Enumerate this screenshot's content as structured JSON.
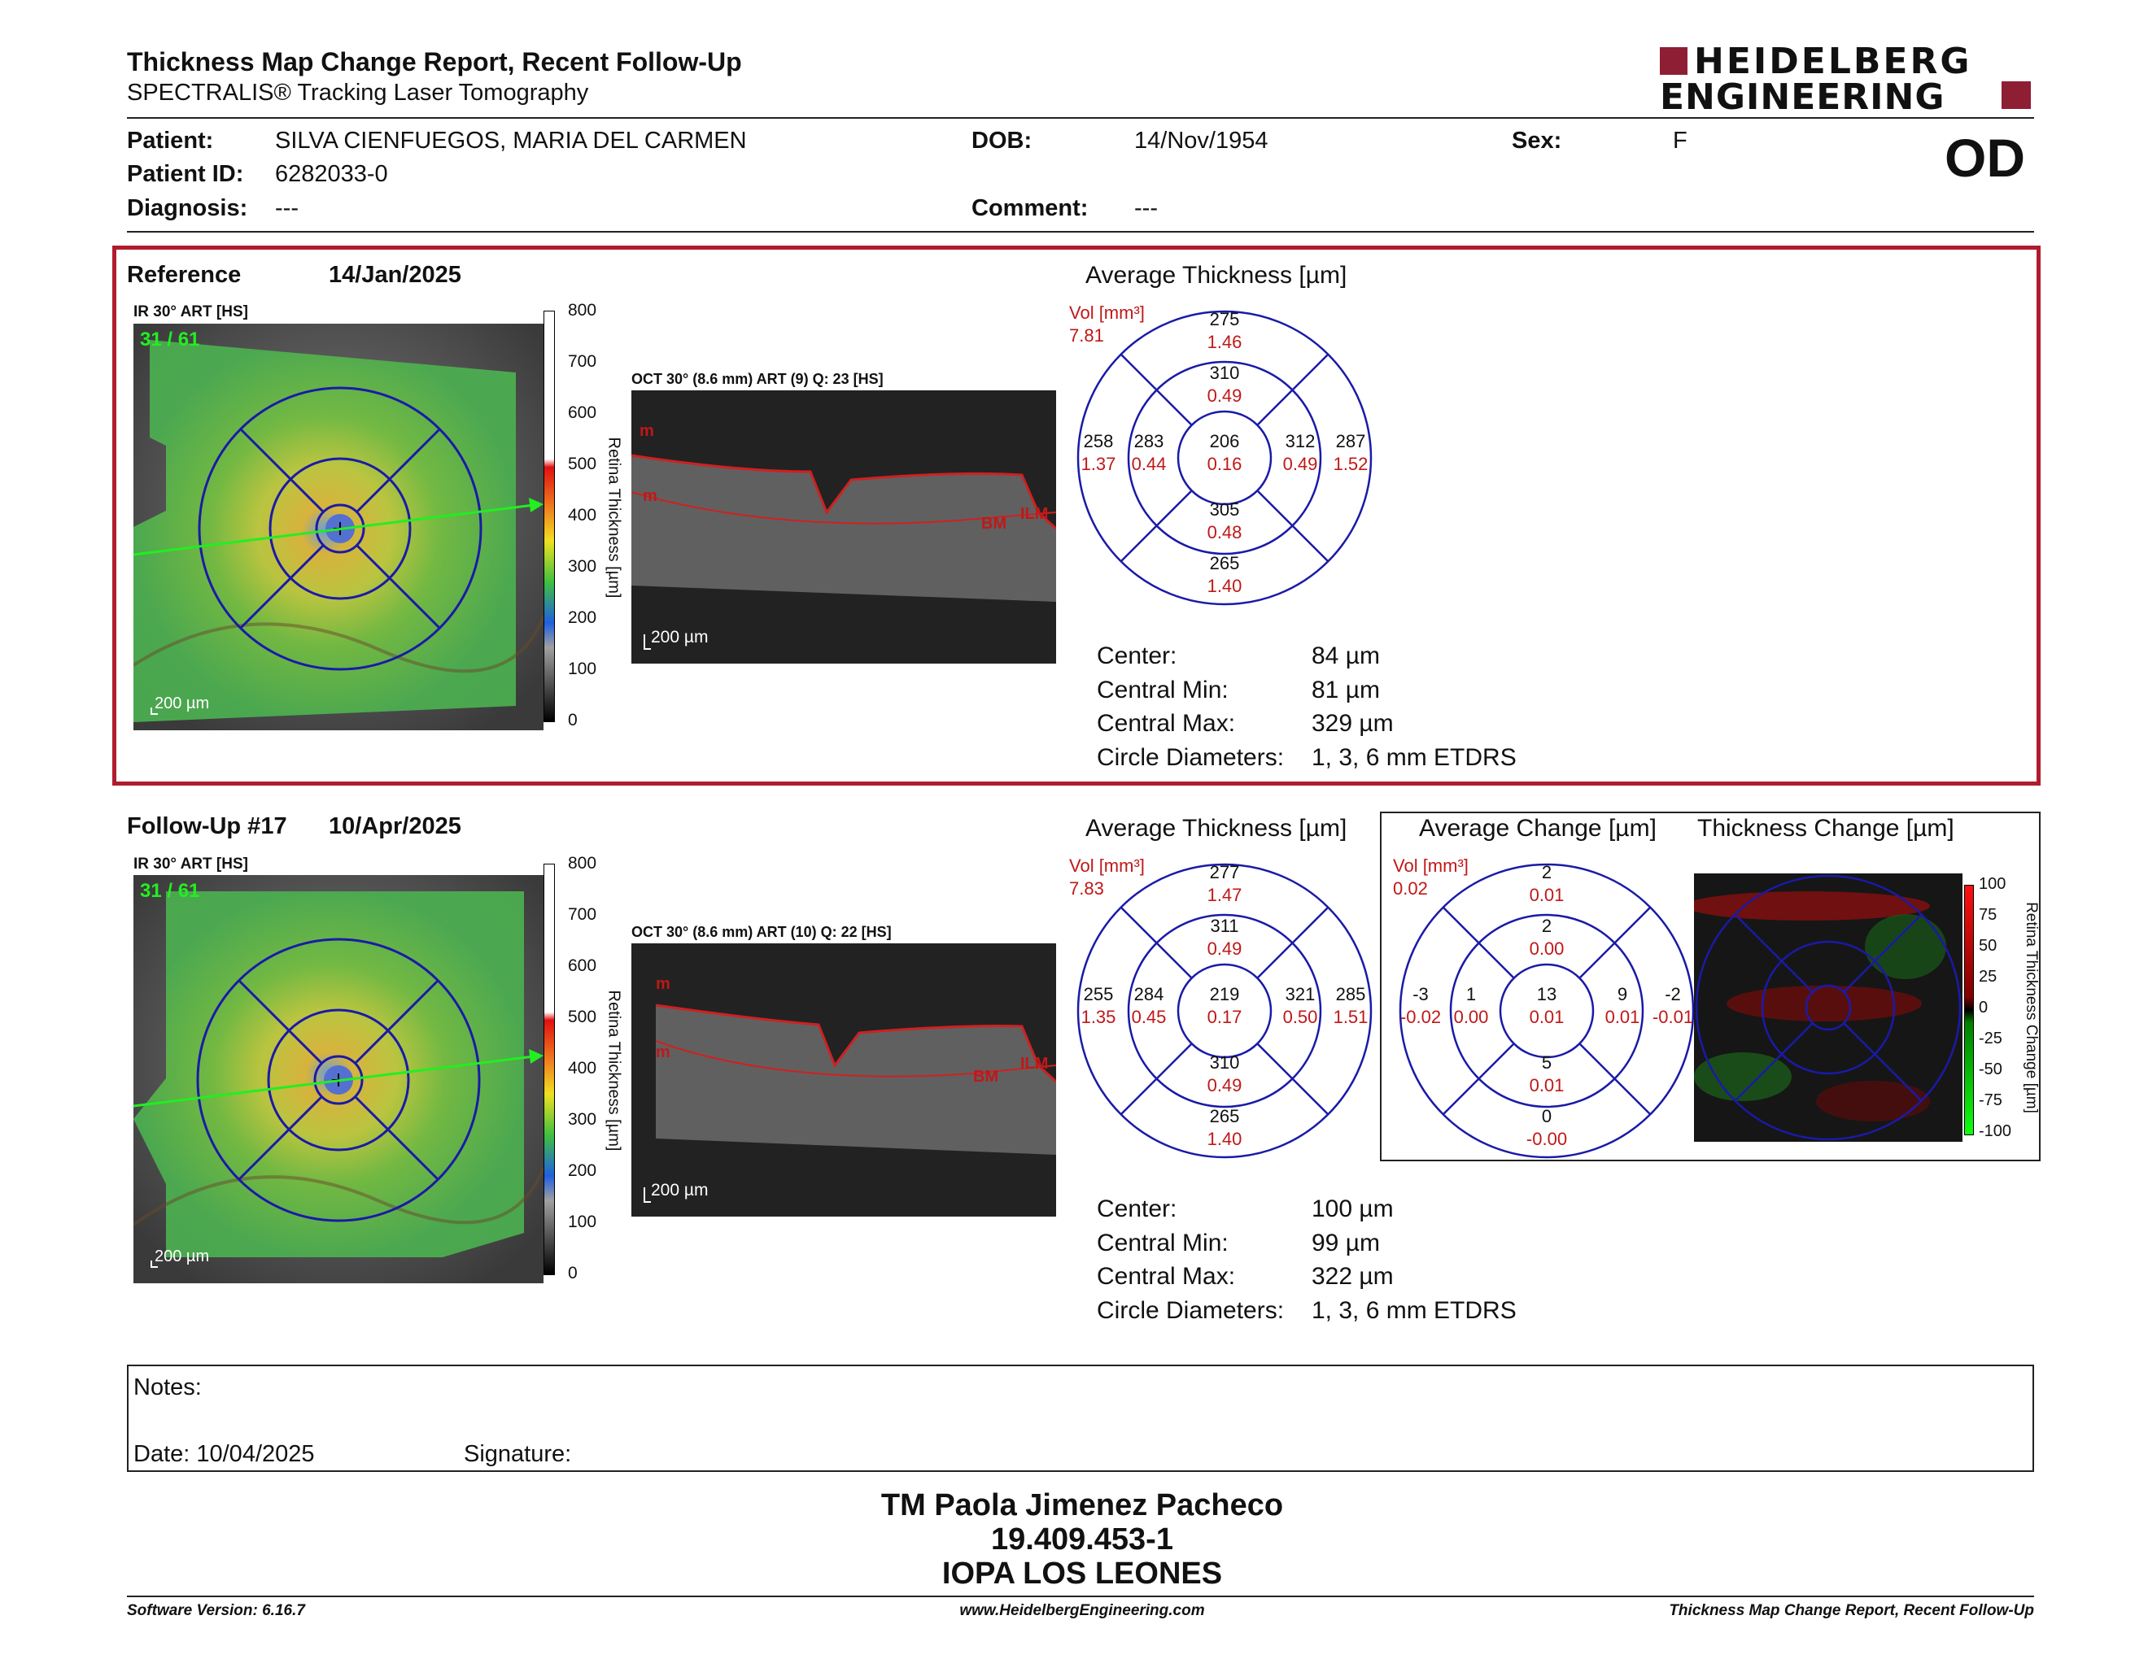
{
  "header": {
    "title": "Thickness Map Change Report, Recent Follow-Up",
    "subtitle": "SPECTRALIS® Tracking Laser Tomography",
    "logo_line1": "HEIDELBERG",
    "logo_line2": "ENGINEERING",
    "eye": "OD"
  },
  "patient": {
    "patient_label": "Patient:",
    "patient_value": "SILVA CIENFUEGOS, MARIA DEL CARMEN",
    "id_label": "Patient ID:",
    "id_value": "6282033-0",
    "diagnosis_label": "Diagnosis:",
    "diagnosis_value": "---",
    "dob_label": "DOB:",
    "dob_value": "14/Nov/1954",
    "comment_label": "Comment:",
    "comment_value": "---",
    "sex_label": "Sex:",
    "sex_value": "F"
  },
  "reference": {
    "label": "Reference",
    "date": "14/Jan/2025",
    "ir_label": "IR 30° ART [HS]",
    "ir_counter": "31 / 61",
    "scale_ticks": [
      "800",
      "700",
      "600",
      "500",
      "400",
      "300",
      "200",
      "100",
      "0"
    ],
    "scale_title": "Retina Thickness [µm]",
    "scalebar": "200 µm",
    "oct_label": "OCT 30° (8.6 mm) ART (9) Q: 23 [HS]",
    "oct_scalebar": "200 µm",
    "avg_title": "Average Thickness [µm]",
    "vol_label": "Vol [mm³]",
    "vol_value": "7.81",
    "etdrs": {
      "center": {
        "t": "206",
        "v": "0.16"
      },
      "inner_sup": {
        "t": "310",
        "v": "0.49"
      },
      "inner_inf": {
        "t": "305",
        "v": "0.48"
      },
      "inner_nas": {
        "t": "283",
        "v": "0.44"
      },
      "inner_tem": {
        "t": "312",
        "v": "0.49"
      },
      "outer_sup": {
        "t": "275",
        "v": "1.46"
      },
      "outer_inf": {
        "t": "265",
        "v": "1.40"
      },
      "outer_nas": {
        "t": "258",
        "v": "1.37"
      },
      "outer_tem": {
        "t": "287",
        "v": "1.52"
      }
    },
    "stats": [
      {
        "label": "Center:",
        "value": "84 µm"
      },
      {
        "label": "Central Min:",
        "value": "81 µm"
      },
      {
        "label": "Central Max:",
        "value": "329 µm"
      },
      {
        "label": "Circle Diameters:",
        "value": "1, 3, 6 mm ETDRS"
      }
    ]
  },
  "followup": {
    "label": "Follow-Up #17",
    "date": "10/Apr/2025",
    "ir_label": "IR 30° ART [HS]",
    "ir_counter": "31 / 61",
    "scale_ticks": [
      "800",
      "700",
      "600",
      "500",
      "400",
      "300",
      "200",
      "100",
      "0"
    ],
    "scale_title": "Retina Thickness [µm]",
    "scalebar": "200 µm",
    "oct_label": "OCT 30° (8.6 mm) ART (10) Q: 22 [HS]",
    "oct_scalebar": "200 µm",
    "avg_title": "Average Thickness [µm]",
    "vol_label": "Vol [mm³]",
    "vol_value": "7.83",
    "etdrs": {
      "center": {
        "t": "219",
        "v": "0.17"
      },
      "inner_sup": {
        "t": "311",
        "v": "0.49"
      },
      "inner_inf": {
        "t": "310",
        "v": "0.49"
      },
      "inner_nas": {
        "t": "284",
        "v": "0.45"
      },
      "inner_tem": {
        "t": "321",
        "v": "0.50"
      },
      "outer_sup": {
        "t": "277",
        "v": "1.47"
      },
      "outer_inf": {
        "t": "265",
        "v": "1.40"
      },
      "outer_nas": {
        "t": "255",
        "v": "1.35"
      },
      "outer_tem": {
        "t": "285",
        "v": "1.51"
      }
    },
    "stats": [
      {
        "label": "Center:",
        "value": "100 µm"
      },
      {
        "label": "Central Min:",
        "value": "99 µm"
      },
      {
        "label": "Central Max:",
        "value": "322 µm"
      },
      {
        "label": "Circle Diameters:",
        "value": "1, 3, 6 mm ETDRS"
      }
    ]
  },
  "change": {
    "avg_title": "Average Change [µm]",
    "map_title": "Thickness Change [µm]",
    "vol_label": "Vol [mm³]",
    "vol_value": "0.02",
    "etdrs": {
      "center": {
        "t": "13",
        "v": "0.01"
      },
      "inner_sup": {
        "t": "2",
        "v": "0.00"
      },
      "inner_inf": {
        "t": "5",
        "v": "0.01"
      },
      "inner_nas": {
        "t": "1",
        "v": "0.00"
      },
      "inner_tem": {
        "t": "9",
        "v": "0.01"
      },
      "outer_sup": {
        "t": "2",
        "v": "0.01"
      },
      "outer_inf": {
        "t": "0",
        "v": "-0.00"
      },
      "outer_nas": {
        "t": "-3",
        "v": "-0.02"
      },
      "outer_tem": {
        "t": "-2",
        "v": "-0.01"
      }
    },
    "scale_ticks": [
      "100",
      "75",
      "50",
      "25",
      "0",
      "-25",
      "-50",
      "-75",
      "-100"
    ],
    "scale_title": "Retina Thickness Change [µm]"
  },
  "notes": {
    "notes_label": "Notes:",
    "date_label": "Date: 10/04/2025",
    "signature_label": "Signature:"
  },
  "signer": {
    "name": "TM Paola Jimenez Pacheco",
    "rut": "19.409.453-1",
    "org": "IOPA LOS LEONES"
  },
  "footer": {
    "version": "Software Version: 6.16.7",
    "website": "www.HeidelbergEngineering.com",
    "report": "Thickness Map Change Report, Recent Follow-Up"
  },
  "colors": {
    "accent_red": "#b01c2e",
    "grid_blue": "#1a1aa8",
    "value_red": "#c01818"
  }
}
